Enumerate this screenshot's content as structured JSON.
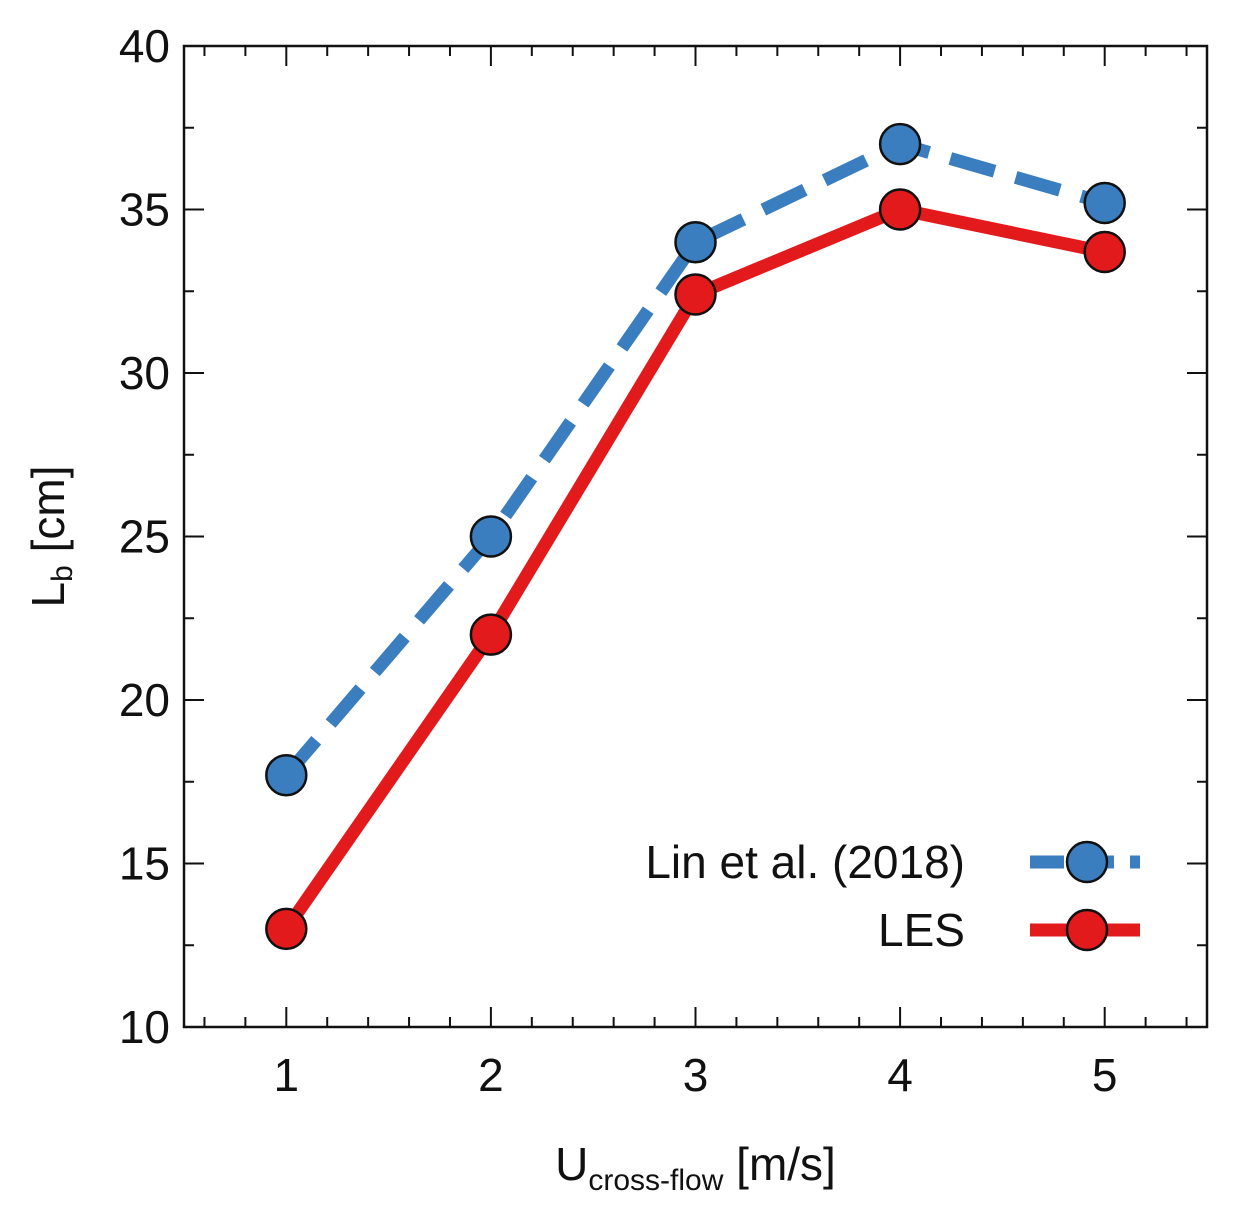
{
  "chart_data": {
    "type": "line",
    "title": "",
    "xlabel": {
      "main": "U",
      "sub": "cross-flow",
      "unit": " [m/s]"
    },
    "ylabel": {
      "main": "L",
      "sub": "b",
      "unit": " [cm]"
    },
    "xlim": [
      0.5,
      5.5
    ],
    "ylim": [
      10,
      40
    ],
    "x_ticks": [
      1,
      2,
      3,
      4,
      5
    ],
    "x_tick_labels": [
      "1",
      "2",
      "3",
      "4",
      "5"
    ],
    "y_ticks": [
      10,
      15,
      20,
      25,
      30,
      35,
      40
    ],
    "y_tick_labels": [
      "10",
      "15",
      "20",
      "25",
      "30",
      "35",
      "40"
    ],
    "x_minor_step": 0.2,
    "y_minor_step": 2.5,
    "grid": false,
    "legend_position": "bottom-right",
    "x": [
      1,
      2,
      3,
      4,
      5
    ],
    "series": [
      {
        "name": "Lin et al. (2018)",
        "values": [
          17.7,
          25.0,
          34.0,
          37.0,
          35.2
        ],
        "color": "#3a7ebf",
        "line_style": "dashed"
      },
      {
        "name": "LES",
        "values": [
          13.0,
          22.0,
          32.4,
          35.0,
          33.7
        ],
        "color": "#e31a1c",
        "line_style": "solid"
      }
    ]
  }
}
